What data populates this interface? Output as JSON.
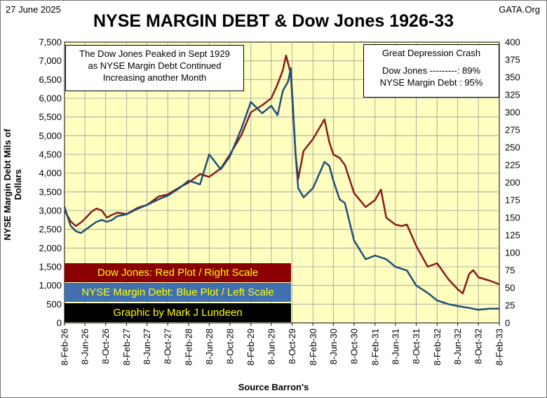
{
  "header": {
    "date": "27 June 2025",
    "site": "GATA.Org",
    "title": "NYSE MARGIN DEBT & Dow Jones 1926-33"
  },
  "annotations": {
    "left": [
      "The Dow Jones Peaked in Sept 1929",
      "as NYSE Margin Debt Continued",
      "Increasing another Month"
    ],
    "right_title": "Great Depression Crash",
    "right_dow": "Dow Jones ---------: 89%",
    "right_margin": "NYSE Margin Debt : 95%"
  },
  "legend": {
    "dow": "Dow Jones: Red Plot / Right Scale",
    "margin": "NYSE Margin Debt: Blue Plot / Left Scale",
    "credit": "Graphic by Mark J Lundeen"
  },
  "colors": {
    "plot_bg": "#ffffc0",
    "dow_line": "#8b1a1a",
    "margin_line": "#1f4e79",
    "legend_dow_bg": "#8b0000",
    "legend_margin_bg": "#4070b0",
    "legend_text": "#ffff00"
  },
  "chart_data": {
    "type": "line",
    "xlabel": "Source Barron's",
    "ylabel_left": "NYSE Margin Debt Mils of Dollars",
    "ylabel_right": "",
    "x_ticks": [
      "8-Feb-26",
      "8-Jun-26",
      "8-Oct-26",
      "8-Feb-27",
      "8-Jun-27",
      "8-Oct-27",
      "8-Feb-28",
      "8-Jun-28",
      "8-Oct-28",
      "8-Feb-29",
      "8-Jun-29",
      "8-Oct-29",
      "8-Feb-30",
      "8-Jun-30",
      "8-Oct-30",
      "8-Feb-31",
      "8-Jun-31",
      "8-Oct-31",
      "8-Feb-32",
      "8-Jun-32",
      "8-Oct-32",
      "8-Feb-33"
    ],
    "ylim_left": [
      0,
      7500
    ],
    "ylim_right": [
      0,
      400
    ],
    "y_ticks_left": [
      "0",
      "500",
      "1,000",
      "1,500",
      "2,000",
      "2,500",
      "3,000",
      "3,500",
      "4,000",
      "4,500",
      "5,000",
      "5,500",
      "6,000",
      "6,500",
      "7,000",
      "7,500"
    ],
    "y_ticks_right": [
      "0",
      "25",
      "50",
      "75",
      "100",
      "125",
      "150",
      "175",
      "200",
      "225",
      "250",
      "275",
      "300",
      "325",
      "350",
      "375",
      "400"
    ],
    "grid": true,
    "series": [
      {
        "name": "Dow Jones",
        "axis": "right",
        "x": [
          "1926-02-08",
          "1926-03-15",
          "1926-04-15",
          "1926-05-15",
          "1926-06-15",
          "1926-07-15",
          "1926-08-15",
          "1926-09-15",
          "1926-10-15",
          "1926-11-15",
          "1926-12-15",
          "1927-02-08",
          "1927-04-15",
          "1927-06-08",
          "1927-08-15",
          "1927-10-08",
          "1927-12-15",
          "1928-02-08",
          "1928-04-15",
          "1928-06-08",
          "1928-08-15",
          "1928-10-08",
          "1928-12-15",
          "1929-02-08",
          "1929-04-15",
          "1929-06-08",
          "1929-07-15",
          "1929-08-15",
          "1929-09-03",
          "1929-10-01",
          "1929-10-29",
          "1929-11-13",
          "1929-12-15",
          "1930-02-08",
          "1930-04-17",
          "1930-05-15",
          "1930-06-08",
          "1930-07-15",
          "1930-08-15",
          "1930-10-08",
          "1930-12-15",
          "1931-02-08",
          "1931-03-15",
          "1931-04-15",
          "1931-06-08",
          "1931-07-15",
          "1931-08-15",
          "1931-10-08",
          "1931-12-15",
          "1932-02-08",
          "1932-04-15",
          "1932-06-08",
          "1932-07-08",
          "1932-08-15",
          "1932-09-08",
          "1932-10-08",
          "1932-12-15",
          "1933-02-08"
        ],
        "values": [
          160,
          145,
          138,
          143,
          150,
          158,
          163,
          160,
          150,
          154,
          157,
          155,
          164,
          168,
          180,
          183,
          193,
          200,
          212,
          208,
          220,
          240,
          268,
          300,
          310,
          320,
          340,
          360,
          381,
          355,
          240,
          205,
          245,
          262,
          290,
          258,
          240,
          235,
          225,
          185,
          165,
          175,
          190,
          150,
          140,
          138,
          140,
          110,
          80,
          85,
          62,
          48,
          42,
          70,
          75,
          65,
          60,
          55
        ]
      },
      {
        "name": "NYSE Margin Debt",
        "axis": "left",
        "x": [
          "1926-02-08",
          "1926-03-15",
          "1926-04-15",
          "1926-05-15",
          "1926-06-15",
          "1926-07-15",
          "1926-08-15",
          "1926-09-15",
          "1926-10-15",
          "1926-11-15",
          "1926-12-15",
          "1927-02-08",
          "1927-04-15",
          "1927-06-08",
          "1927-08-15",
          "1927-10-08",
          "1927-12-15",
          "1928-02-08",
          "1928-04-15",
          "1928-06-08",
          "1928-08-15",
          "1928-10-08",
          "1928-12-15",
          "1929-02-08",
          "1929-04-15",
          "1929-06-08",
          "1929-07-15",
          "1929-08-15",
          "1929-09-15",
          "1929-10-01",
          "1929-10-29",
          "1929-11-13",
          "1929-12-15",
          "1930-02-08",
          "1930-04-17",
          "1930-05-15",
          "1930-06-08",
          "1930-07-15",
          "1930-08-15",
          "1930-10-08",
          "1930-12-15",
          "1931-02-08",
          "1931-04-15",
          "1931-06-08",
          "1931-08-15",
          "1931-10-08",
          "1931-12-15",
          "1932-02-08",
          "1932-04-15",
          "1932-06-08",
          "1932-08-15",
          "1932-10-08",
          "1932-12-15",
          "1933-02-08"
        ],
        "values": [
          3100,
          2600,
          2450,
          2400,
          2500,
          2600,
          2700,
          2750,
          2700,
          2750,
          2850,
          2900,
          3050,
          3150,
          3300,
          3400,
          3600,
          3800,
          3700,
          4500,
          4100,
          4450,
          5200,
          5900,
          5600,
          5800,
          5550,
          6200,
          6450,
          6800,
          4500,
          3600,
          3350,
          3600,
          4300,
          4200,
          3800,
          3300,
          3200,
          2200,
          1700,
          1800,
          1700,
          1500,
          1400,
          1000,
          800,
          600,
          500,
          450,
          400,
          350,
          380,
          380
        ]
      }
    ]
  }
}
